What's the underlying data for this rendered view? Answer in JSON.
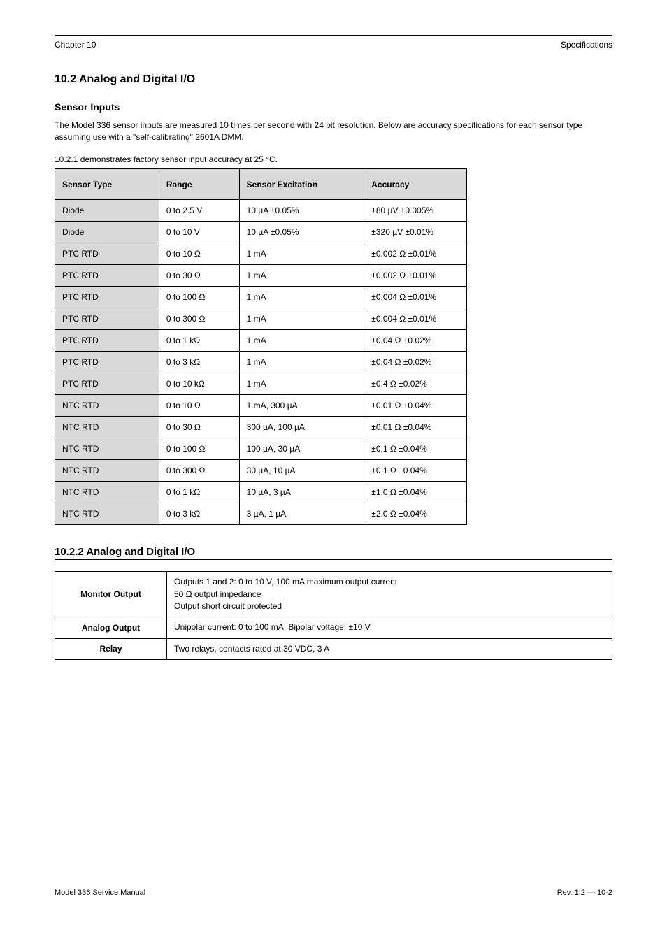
{
  "header": {
    "left": "Chapter 10",
    "right": "Specifications"
  },
  "section_title": "10.2 Analog and Digital I/O",
  "sensor_inputs": {
    "heading": "Sensor Inputs",
    "intro": "The Model 336 sensor inputs are measured 10 times per second with 24 bit resolution. Below are accuracy specifications for each sensor type assuming use with a \"self-calibrating\" 2601A DMM.",
    "table_intro": "10.2.1 demonstrates factory sensor input accuracy at 25 °C.",
    "table": {
      "columns": [
        "Sensor Type",
        "Range",
        "Sensor Excitation",
        "Accuracy"
      ],
      "rows": [
        {
          "type": "Diode",
          "range": "0 to 2.5 V",
          "excitation": "10 µA ±0.05%",
          "accuracy": "±80 µV ±0.005%"
        },
        {
          "type": "Diode",
          "range": "0 to 10 V",
          "excitation": "10 µA ±0.05%",
          "accuracy": "±320 µV ±0.01%"
        },
        {
          "type": "PTC RTD",
          "range": "0 to 10 Ω",
          "excitation": "1 mA",
          "accuracy": "±0.002 Ω ±0.01%"
        },
        {
          "type": "PTC RTD",
          "range": "0 to 30 Ω",
          "excitation": "1 mA",
          "accuracy": "±0.002 Ω ±0.01%"
        },
        {
          "type": "PTC RTD",
          "range": "0 to 100 Ω",
          "excitation": "1 mA",
          "accuracy": "±0.004 Ω ±0.01%"
        },
        {
          "type": "PTC RTD",
          "range": "0 to 300 Ω",
          "excitation": "1 mA",
          "accuracy": "±0.004 Ω ±0.01%"
        },
        {
          "type": "PTC RTD",
          "range": "0 to 1 kΩ",
          "excitation": "1 mA",
          "accuracy": "±0.04 Ω ±0.02%"
        },
        {
          "type": "PTC RTD",
          "range": "0 to 3 kΩ",
          "excitation": "1 mA",
          "accuracy": "±0.04 Ω ±0.02%"
        },
        {
          "type": "PTC RTD",
          "range": "0 to 10 kΩ",
          "excitation": "1 mA",
          "accuracy": "±0.4 Ω ±0.02%"
        },
        {
          "type": "NTC RTD",
          "range": "0 to 10 Ω",
          "excitation": "1 mA, 300 µA",
          "accuracy": "±0.01 Ω ±0.04%"
        },
        {
          "type": "NTC RTD",
          "range": "0 to 30 Ω",
          "excitation": "300 µA, 100 µA",
          "accuracy": "±0.01 Ω ±0.04%"
        },
        {
          "type": "NTC RTD",
          "range": "0 to 100 Ω",
          "excitation": "100 µA, 30 µA",
          "accuracy": "±0.1 Ω ±0.04%"
        },
        {
          "type": "NTC RTD",
          "range": "0 to 300 Ω",
          "excitation": "30 µA, 10 µA",
          "accuracy": "±0.1 Ω ±0.04%"
        },
        {
          "type": "NTC RTD",
          "range": "0 to 1 kΩ",
          "excitation": "10 µA, 3 µA",
          "accuracy": "±1.0 Ω ±0.04%"
        },
        {
          "type": "NTC RTD",
          "range": "0 to 3 kΩ",
          "excitation": "3 µA, 1 µA",
          "accuracy": "±2.0 Ω ±0.04%"
        }
      ]
    }
  },
  "analog_io": {
    "heading": "10.2.2  Analog and Digital I/O",
    "rows": [
      {
        "label": "Monitor Output",
        "desc_lines": [
          "Outputs 1 and 2: 0 to 10 V, 100 mA maximum output current",
          "50 Ω output impedance",
          "Output short circuit protected"
        ]
      },
      {
        "label": "Analog Output",
        "desc_lines": [
          "Unipolar current: 0 to 100 mA; Bipolar voltage: ±10 V"
        ]
      },
      {
        "label": "Relay",
        "desc_lines": [
          "Two relays, contacts rated at 30 VDC, 3 A"
        ]
      }
    ]
  },
  "footer": {
    "left": "Model 336 Service Manual",
    "right": "Rev. 1.2 — 10-2"
  }
}
